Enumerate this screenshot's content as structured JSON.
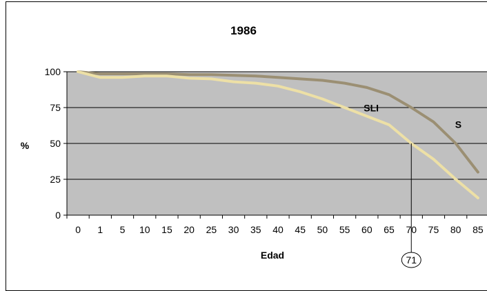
{
  "chart_data": {
    "type": "line",
    "title": "1986",
    "xlabel": "Edad",
    "ylabel": "%",
    "categories": [
      "0",
      "1",
      "5",
      "10",
      "15",
      "20",
      "25",
      "30",
      "35",
      "40",
      "45",
      "50",
      "55",
      "60",
      "65",
      "70",
      "75",
      "80",
      "85"
    ],
    "ylim": [
      0,
      100
    ],
    "yticks": [
      0,
      25,
      50,
      75,
      100
    ],
    "grid": true,
    "legend": "none",
    "plot_background": "#c0c0c0",
    "series": [
      {
        "name": "S",
        "color": "#9b8f73",
        "values": [
          100,
          98.5,
          98.5,
          98.5,
          98.5,
          98,
          98,
          97.5,
          97,
          96,
          95,
          94,
          92,
          89,
          84,
          75,
          65,
          50,
          30
        ]
      },
      {
        "name": "SLI",
        "color": "#ede0a6",
        "values": [
          100,
          96,
          96,
          97,
          97,
          95.5,
          95,
          93,
          92,
          90,
          86,
          81,
          75,
          69,
          63,
          50,
          39,
          25,
          12
        ]
      }
    ],
    "annotation": {
      "label": "71",
      "x_category": "70",
      "value": 50
    }
  }
}
